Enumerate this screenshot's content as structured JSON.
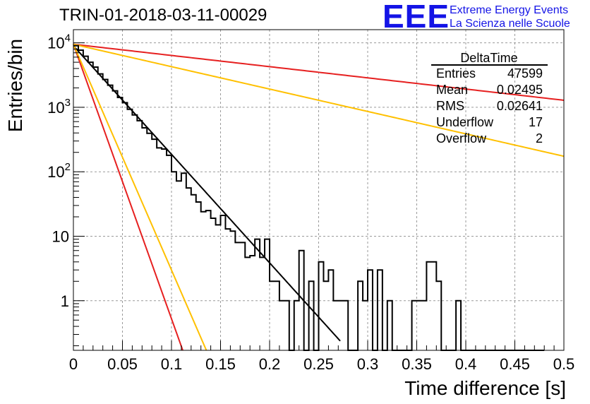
{
  "title": "TRIN-01-2018-03-11-00029",
  "logo": {
    "text": "EEE",
    "line1": "Extreme Energy Events",
    "line2": "La Scienza nelle Scuole",
    "color": "#1414e6"
  },
  "stats": {
    "name": "DeltaTime",
    "rows": [
      {
        "label": "Entries",
        "value": "47599"
      },
      {
        "label": "Mean",
        "value": "0.02495"
      },
      {
        "label": "RMS",
        "value": "0.02641"
      },
      {
        "label": "Underflow",
        "value": "17"
      },
      {
        "label": "Overflow",
        "value": "2"
      }
    ]
  },
  "chart_data": {
    "type": "line",
    "title": "TRIN-01-2018-03-11-00029",
    "xlabel": "Time difference [s]",
    "ylabel": "Entries/bin",
    "xlim": [
      0,
      0.5
    ],
    "ylim": [
      0.17,
      16000
    ],
    "yscale": "log",
    "grid": true,
    "x_ticks": [
      "0",
      "0.05",
      "0.1",
      "0.15",
      "0.2",
      "0.25",
      "0.3",
      "0.35",
      "0.4",
      "0.45",
      "0.5"
    ],
    "x_tick_values": [
      0,
      0.05,
      0.1,
      0.15,
      0.2,
      0.25,
      0.3,
      0.35,
      0.4,
      0.45,
      0.5
    ],
    "y_ticks": [
      {
        "value": 1,
        "label": "1"
      },
      {
        "value": 10,
        "label": "10"
      },
      {
        "value": 100,
        "base": "10",
        "exp": "2"
      },
      {
        "value": 1000,
        "base": "10",
        "exp": "3"
      },
      {
        "value": 10000,
        "base": "10",
        "exp": "4"
      }
    ],
    "histogram": {
      "color": "#000000",
      "bin_width": 0.005,
      "values": [
        9000,
        7700,
        6200,
        5000,
        4200,
        3300,
        2700,
        2200,
        1800,
        1420,
        1180,
        930,
        760,
        620,
        480,
        395,
        320,
        235,
        225,
        180,
        100,
        72,
        95,
        56,
        44,
        34,
        24,
        25,
        19,
        15,
        21,
        13,
        12,
        8,
        8,
        4.7,
        5,
        9,
        4.7,
        9,
        2,
        2,
        1,
        1,
        0,
        1,
        6,
        0,
        2,
        0,
        4,
        2,
        3,
        1,
        1,
        1,
        0,
        0,
        2,
        1,
        3,
        0,
        3,
        0,
        1,
        0,
        0,
        0,
        0,
        1,
        1,
        1,
        4,
        4,
        2,
        0,
        0,
        0,
        1,
        0,
        0,
        0,
        0,
        0,
        0,
        0,
        0,
        0,
        0,
        0,
        0,
        0,
        0,
        0,
        0,
        0
      ]
    },
    "series": [
      {
        "kind": "exponential",
        "color": "#000000",
        "A": 9000,
        "tau": 0.0258,
        "xmax": 0.272
      },
      {
        "kind": "exponential",
        "color": "#e62020",
        "A": 9500,
        "tau": 0.0102,
        "xmax": 0.112
      },
      {
        "kind": "exponential",
        "color": "#ffc000",
        "A": 9500,
        "tau": 0.0124,
        "xmax": 0.137
      },
      {
        "kind": "exponential",
        "color": "#e62020",
        "A": 9500,
        "tau": 0.25,
        "xmax": 0.5
      },
      {
        "kind": "exponential",
        "color": "#ffc000",
        "A": 9500,
        "tau": 0.125,
        "xmax": 0.5
      }
    ]
  }
}
